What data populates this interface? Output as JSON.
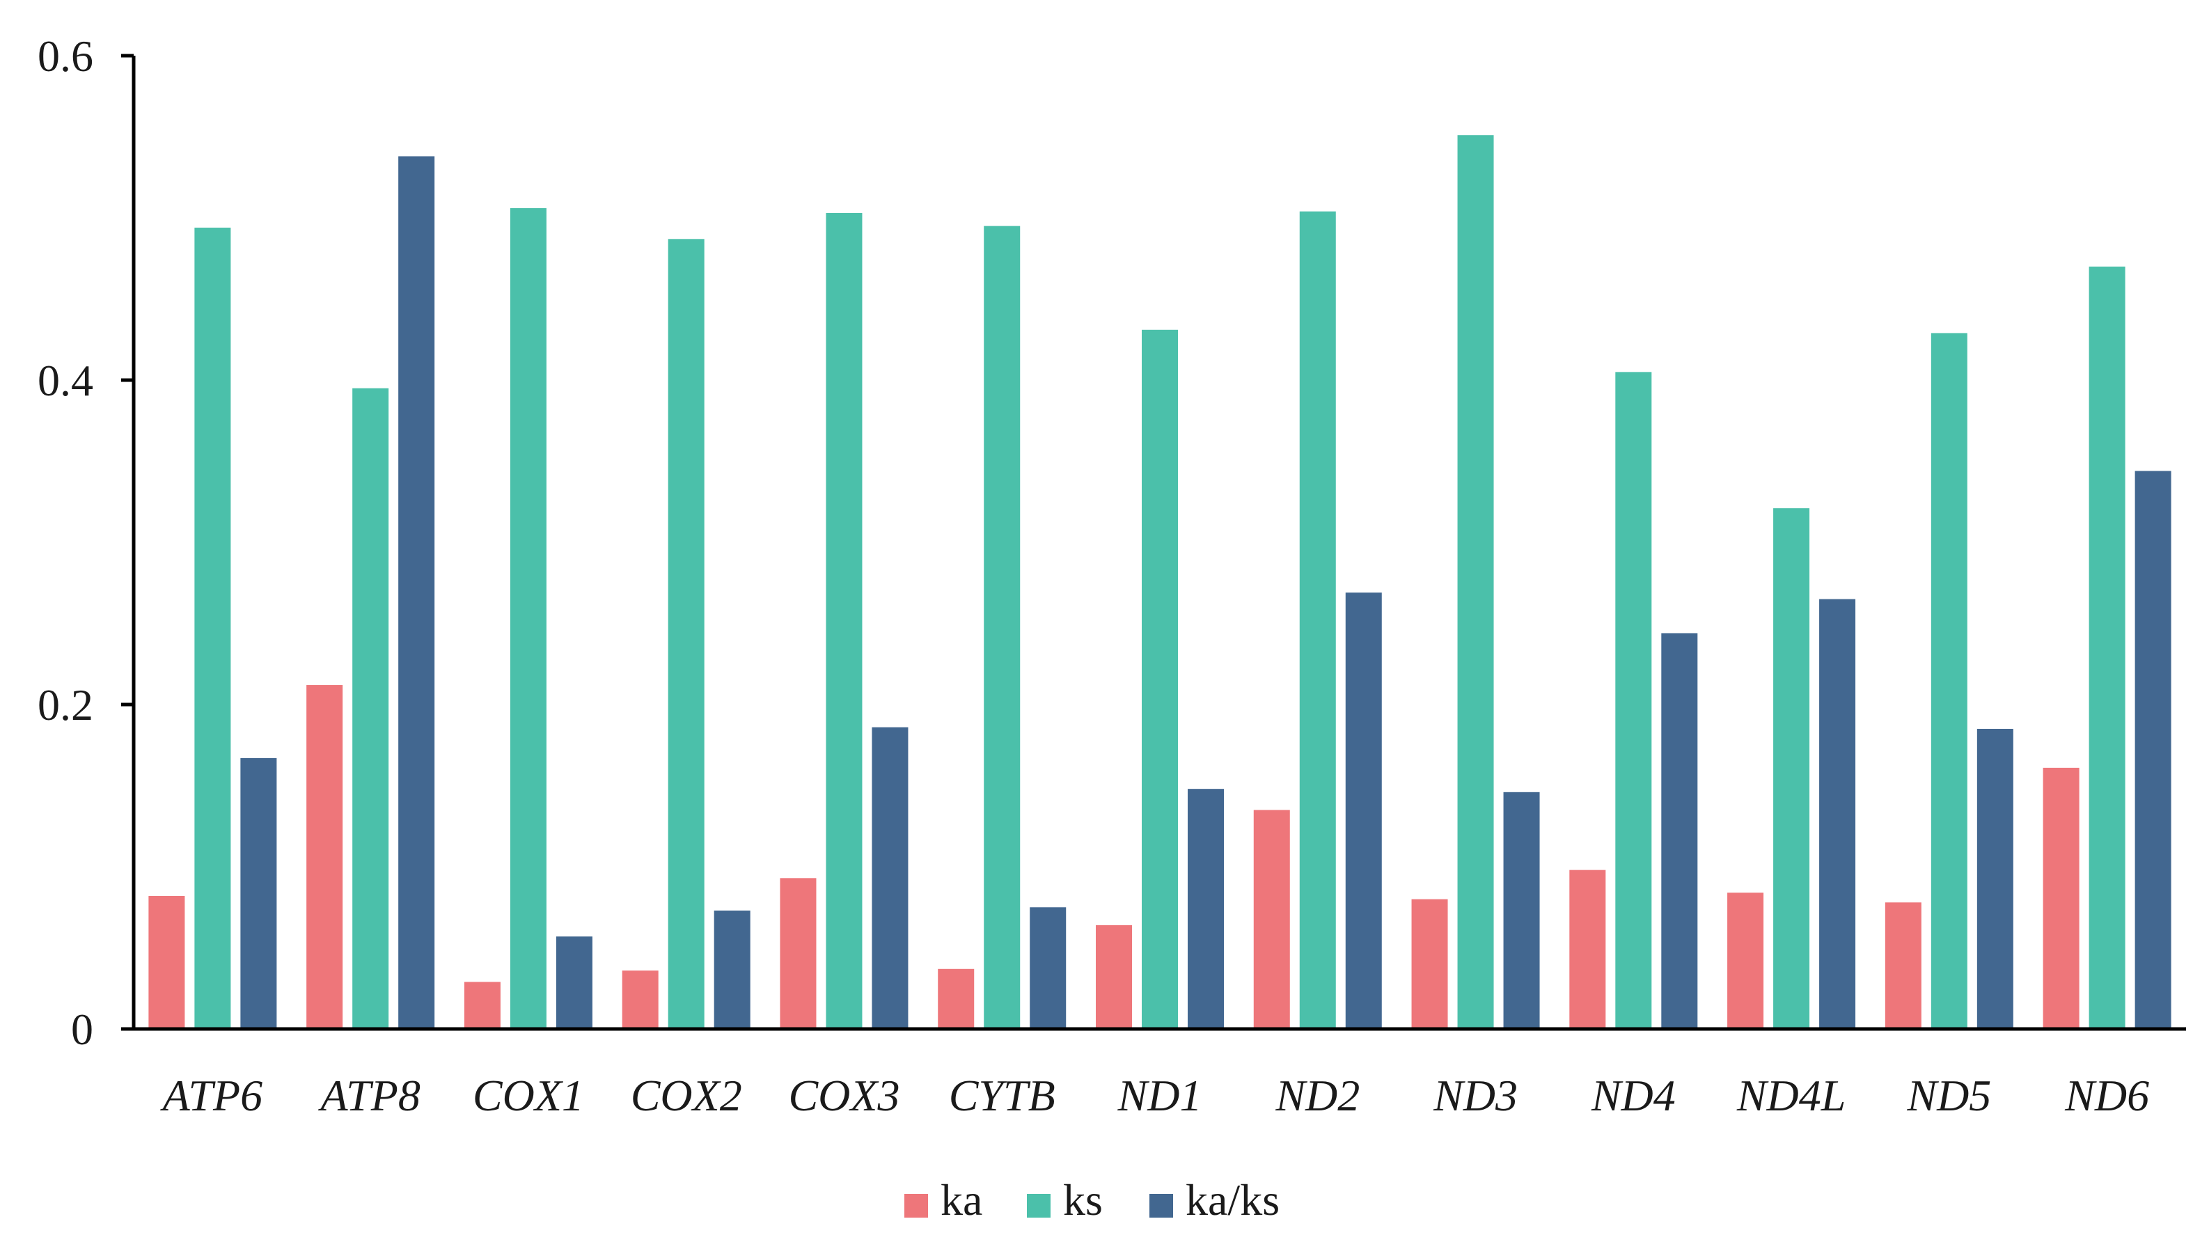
{
  "chart_data": {
    "type": "bar",
    "categories": [
      "ATP6",
      "ATP8",
      "COX1",
      "COX2",
      "COX3",
      "CYTB",
      "ND1",
      "ND2",
      "ND3",
      "ND4",
      "ND4L",
      "ND5",
      "ND6"
    ],
    "series": [
      {
        "name": "ka",
        "color": "#ee767a",
        "values": [
          0.082,
          0.212,
          0.029,
          0.036,
          0.093,
          0.037,
          0.064,
          0.135,
          0.08,
          0.098,
          0.084,
          0.078,
          0.161
        ]
      },
      {
        "name": "ks",
        "color": "#4bc0aa",
        "values": [
          0.494,
          0.395,
          0.506,
          0.487,
          0.503,
          0.495,
          0.431,
          0.504,
          0.551,
          0.405,
          0.321,
          0.429,
          0.47
        ]
      },
      {
        "name": "ka/ks",
        "color": "#426790",
        "values": [
          0.167,
          0.538,
          0.057,
          0.073,
          0.186,
          0.075,
          0.148,
          0.269,
          0.146,
          0.244,
          0.265,
          0.185,
          0.344
        ]
      }
    ],
    "yticks": [
      "0",
      "0.2",
      "0.4",
      "0.6"
    ],
    "ylim": [
      0,
      0.6
    ],
    "grid": false,
    "legend_position": "bottom-center"
  }
}
